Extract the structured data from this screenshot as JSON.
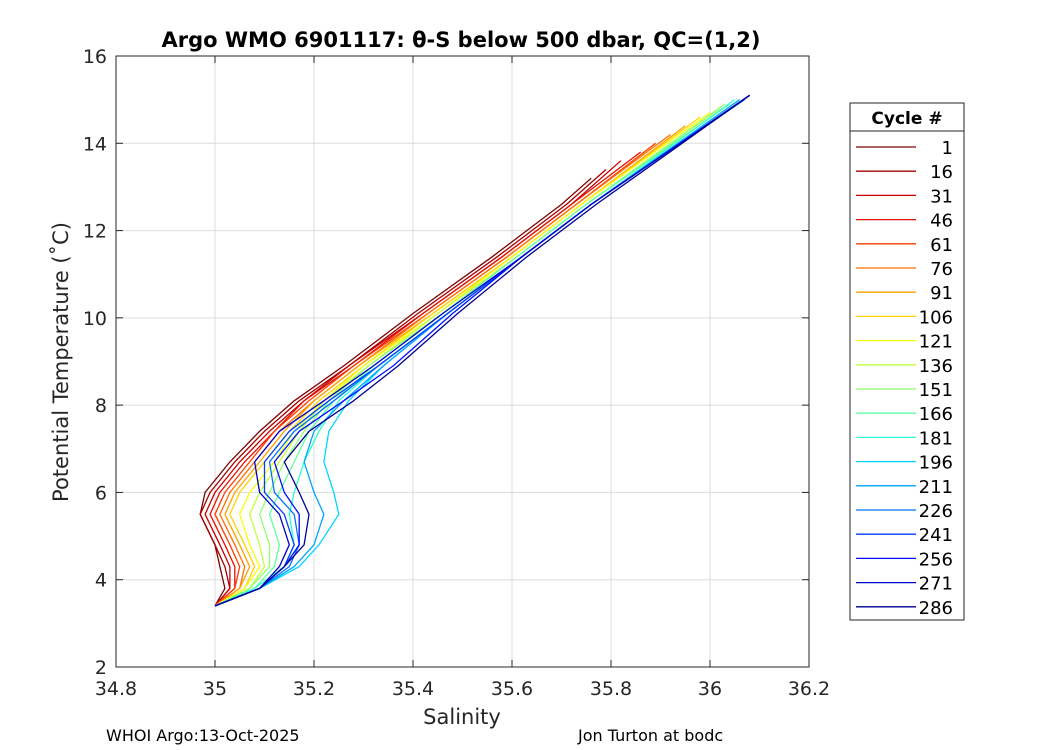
{
  "chart_data": {
    "type": "line",
    "title": "Argo WMO 6901117: θ-S below 500 dbar,  QC=(1,2)",
    "xlabel": "Salinity",
    "ylabel": "Potential Temperature (˚C)",
    "xlim": [
      34.8,
      36.2
    ],
    "ylim": [
      2,
      16
    ],
    "xticks": [
      34.8,
      35.0,
      35.2,
      35.4,
      35.6,
      35.8,
      36.0,
      36.2
    ],
    "xtick_labels": [
      "34.8",
      "35",
      "35.2",
      "35.4",
      "35.6",
      "35.8",
      "36",
      "36.2"
    ],
    "yticks": [
      2,
      4,
      6,
      8,
      10,
      12,
      14,
      16
    ],
    "ytick_labels": [
      "2",
      "4",
      "6",
      "8",
      "10",
      "12",
      "14",
      "16"
    ],
    "grid": true,
    "legend": {
      "title": "Cycle #",
      "placement": "right-outside",
      "entries": [
        {
          "label": "1",
          "color": "#800000"
        },
        {
          "label": "16",
          "color": "#a50000"
        },
        {
          "label": "31",
          "color": "#c80000"
        },
        {
          "label": "46",
          "color": "#e60f00"
        },
        {
          "label": "61",
          "color": "#ff3c00"
        },
        {
          "label": "76",
          "color": "#ff6e00"
        },
        {
          "label": "91",
          "color": "#ffa000"
        },
        {
          "label": "106",
          "color": "#ffd200"
        },
        {
          "label": "121",
          "color": "#f5ff0a"
        },
        {
          "label": "136",
          "color": "#c3ff3c"
        },
        {
          "label": "151",
          "color": "#91ff6e"
        },
        {
          "label": "166",
          "color": "#5fffa0"
        },
        {
          "label": "181",
          "color": "#2dffd2"
        },
        {
          "label": "196",
          "color": "#00d7ff"
        },
        {
          "label": "211",
          "color": "#00a5ff"
        },
        {
          "label": "226",
          "color": "#0073ff"
        },
        {
          "label": "241",
          "color": "#0041ff"
        },
        {
          "label": "256",
          "color": "#000fff"
        },
        {
          "label": "271",
          "color": "#0000c8"
        },
        {
          "label": "286",
          "color": "#000096"
        }
      ]
    },
    "series": [
      {
        "name": "1",
        "x": [
          35.0,
          35.02,
          35.01,
          35.0,
          34.97,
          34.98,
          35.03,
          35.09,
          35.16,
          35.26,
          35.4,
          35.56,
          35.7,
          35.76
        ],
        "y": [
          3.4,
          3.8,
          4.3,
          4.8,
          5.5,
          6.0,
          6.7,
          7.4,
          8.1,
          8.9,
          10.1,
          11.4,
          12.6,
          13.2
        ]
      },
      {
        "name": "16",
        "x": [
          35.0,
          35.03,
          35.02,
          35.0,
          34.97,
          34.99,
          35.04,
          35.1,
          35.17,
          35.27,
          35.41,
          35.57,
          35.71,
          35.79
        ],
        "y": [
          3.4,
          3.8,
          4.3,
          4.8,
          5.5,
          6.0,
          6.7,
          7.4,
          8.1,
          8.9,
          10.1,
          11.4,
          12.6,
          13.4
        ]
      },
      {
        "name": "31",
        "x": [
          35.0,
          35.03,
          35.03,
          35.01,
          34.98,
          35.0,
          35.05,
          35.11,
          35.18,
          35.27,
          35.42,
          35.58,
          35.72,
          35.82
        ],
        "y": [
          3.4,
          3.8,
          4.3,
          4.8,
          5.5,
          6.0,
          6.7,
          7.4,
          8.1,
          8.9,
          10.1,
          11.4,
          12.6,
          13.6
        ]
      },
      {
        "name": "46",
        "x": [
          35.0,
          35.04,
          35.04,
          35.02,
          34.99,
          35.01,
          35.06,
          35.12,
          35.18,
          35.28,
          35.42,
          35.58,
          35.72,
          35.86
        ],
        "y": [
          3.4,
          3.8,
          4.3,
          4.8,
          5.5,
          6.0,
          6.7,
          7.4,
          8.1,
          8.9,
          10.1,
          11.4,
          12.6,
          13.8
        ]
      },
      {
        "name": "61",
        "x": [
          35.0,
          35.04,
          35.05,
          35.03,
          35.0,
          35.02,
          35.07,
          35.12,
          35.19,
          35.28,
          35.43,
          35.59,
          35.73,
          35.89
        ],
        "y": [
          3.4,
          3.8,
          4.3,
          4.8,
          5.5,
          6.0,
          6.7,
          7.4,
          8.1,
          8.9,
          10.1,
          11.4,
          12.6,
          14.0
        ]
      },
      {
        "name": "76",
        "x": [
          35.0,
          35.05,
          35.06,
          35.04,
          35.01,
          35.03,
          35.08,
          35.13,
          35.2,
          35.29,
          35.43,
          35.59,
          35.73,
          35.92
        ],
        "y": [
          3.4,
          3.8,
          4.3,
          4.8,
          5.5,
          6.0,
          6.7,
          7.4,
          8.1,
          8.9,
          10.1,
          11.4,
          12.6,
          14.2
        ]
      },
      {
        "name": "91",
        "x": [
          35.0,
          35.05,
          35.07,
          35.05,
          35.02,
          35.04,
          35.09,
          35.14,
          35.2,
          35.29,
          35.44,
          35.6,
          35.74,
          35.95
        ],
        "y": [
          3.4,
          3.8,
          4.3,
          4.8,
          5.5,
          6.0,
          6.7,
          7.4,
          8.1,
          8.9,
          10.1,
          11.4,
          12.6,
          14.4
        ]
      },
      {
        "name": "106",
        "x": [
          35.0,
          35.06,
          35.08,
          35.06,
          35.03,
          35.05,
          35.1,
          35.15,
          35.21,
          35.3,
          35.44,
          35.6,
          35.74,
          35.98
        ],
        "y": [
          3.4,
          3.8,
          4.3,
          4.8,
          5.5,
          6.0,
          6.7,
          7.4,
          8.1,
          8.9,
          10.1,
          11.4,
          12.6,
          14.6
        ]
      },
      {
        "name": "121",
        "x": [
          35.0,
          35.06,
          35.09,
          35.07,
          35.05,
          35.07,
          35.12,
          35.16,
          35.22,
          35.3,
          35.45,
          35.6,
          35.74,
          36.0
        ],
        "y": [
          3.4,
          3.8,
          4.3,
          4.8,
          5.5,
          6.0,
          6.7,
          7.4,
          8.1,
          8.9,
          10.1,
          11.4,
          12.6,
          14.7
        ]
      },
      {
        "name": "136",
        "x": [
          35.0,
          35.07,
          35.1,
          35.09,
          35.07,
          35.09,
          35.13,
          35.17,
          35.22,
          35.31,
          35.45,
          35.61,
          35.75,
          36.02
        ],
        "y": [
          3.4,
          3.8,
          4.3,
          4.8,
          5.5,
          6.0,
          6.7,
          7.4,
          8.1,
          8.9,
          10.1,
          11.4,
          12.6,
          14.8
        ]
      },
      {
        "name": "151",
        "x": [
          35.0,
          35.07,
          35.11,
          35.11,
          35.09,
          35.11,
          35.14,
          35.18,
          35.23,
          35.31,
          35.46,
          35.61,
          35.75,
          36.03
        ],
        "y": [
          3.4,
          3.8,
          4.3,
          4.8,
          5.5,
          6.0,
          6.7,
          7.4,
          8.1,
          8.9,
          10.1,
          11.4,
          12.6,
          14.9
        ]
      },
      {
        "name": "166",
        "x": [
          35.0,
          35.08,
          35.12,
          35.13,
          35.11,
          35.13,
          35.16,
          35.19,
          35.24,
          35.32,
          35.46,
          35.61,
          35.75,
          36.04
        ],
        "y": [
          3.4,
          3.8,
          4.3,
          4.8,
          5.5,
          6.0,
          6.7,
          7.4,
          8.1,
          8.9,
          10.1,
          11.4,
          12.6,
          14.9
        ]
      },
      {
        "name": "181",
        "x": [
          35.0,
          35.08,
          35.14,
          35.16,
          35.15,
          35.16,
          35.18,
          35.21,
          35.25,
          35.33,
          35.47,
          35.62,
          35.76,
          36.05
        ],
        "y": [
          3.4,
          3.8,
          4.3,
          4.8,
          5.5,
          6.0,
          6.7,
          7.4,
          8.1,
          8.9,
          10.1,
          11.4,
          12.6,
          15.0
        ]
      },
      {
        "name": "196",
        "x": [
          35.0,
          35.09,
          35.17,
          35.21,
          35.25,
          35.24,
          35.22,
          35.23,
          35.27,
          35.34,
          35.47,
          35.62,
          35.76,
          36.06
        ],
        "y": [
          3.4,
          3.8,
          4.3,
          4.8,
          5.5,
          6.0,
          6.7,
          7.4,
          8.1,
          8.9,
          10.1,
          11.4,
          12.6,
          15.0
        ]
      },
      {
        "name": "211",
        "x": [
          35.0,
          35.09,
          35.16,
          35.2,
          35.22,
          35.2,
          35.18,
          35.2,
          35.26,
          35.34,
          35.47,
          35.62,
          35.76,
          36.06
        ],
        "y": [
          3.4,
          3.8,
          4.3,
          4.8,
          5.5,
          6.0,
          6.7,
          7.4,
          8.1,
          8.9,
          10.1,
          11.4,
          12.6,
          15.0
        ]
      },
      {
        "name": "226",
        "x": [
          35.0,
          35.09,
          35.15,
          35.17,
          35.16,
          35.12,
          35.11,
          35.16,
          35.24,
          35.33,
          35.47,
          35.62,
          35.76,
          36.07
        ],
        "y": [
          3.4,
          3.8,
          4.3,
          4.8,
          5.5,
          6.0,
          6.7,
          7.4,
          8.1,
          8.9,
          10.1,
          11.4,
          12.6,
          15.0
        ]
      },
      {
        "name": "241",
        "x": [
          35.0,
          35.09,
          35.14,
          35.16,
          35.14,
          35.1,
          35.1,
          35.15,
          35.23,
          35.33,
          35.47,
          35.62,
          35.76,
          36.08
        ],
        "y": [
          3.4,
          3.8,
          4.3,
          4.8,
          5.5,
          6.0,
          6.7,
          7.4,
          8.1,
          8.9,
          10.1,
          11.4,
          12.6,
          15.1
        ]
      },
      {
        "name": "256",
        "x": [
          35.0,
          35.09,
          35.14,
          35.17,
          35.17,
          35.14,
          35.12,
          35.17,
          35.26,
          35.36,
          35.48,
          35.62,
          35.76,
          36.08
        ],
        "y": [
          3.4,
          3.8,
          4.3,
          4.8,
          5.5,
          6.0,
          6.7,
          7.4,
          8.1,
          8.9,
          10.1,
          11.4,
          12.6,
          15.1
        ]
      },
      {
        "name": "271",
        "x": [
          35.0,
          35.09,
          35.13,
          35.15,
          35.13,
          35.09,
          35.08,
          35.13,
          35.22,
          35.32,
          35.46,
          35.62,
          35.76,
          36.08
        ],
        "y": [
          3.4,
          3.8,
          4.3,
          4.8,
          5.5,
          6.0,
          6.7,
          7.4,
          8.1,
          8.9,
          10.1,
          11.4,
          12.6,
          15.1
        ]
      },
      {
        "name": "286",
        "x": [
          35.0,
          35.09,
          35.14,
          35.18,
          35.19,
          35.17,
          35.14,
          35.19,
          35.28,
          35.37,
          35.49,
          35.63,
          35.77,
          36.08
        ],
        "y": [
          3.4,
          3.8,
          4.3,
          4.8,
          5.5,
          6.0,
          6.7,
          7.4,
          8.1,
          8.9,
          10.1,
          11.4,
          12.6,
          15.1
        ]
      }
    ]
  },
  "footer": {
    "left": "WHOI Argo:13-Oct-2025",
    "right": "Jon Turton at bodc"
  }
}
